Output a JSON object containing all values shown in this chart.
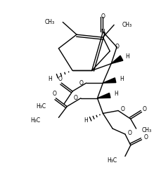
{
  "bg_color": "#ffffff",
  "line_color": "#000000",
  "lw": 1.0,
  "fig_width": 2.19,
  "fig_height": 2.52,
  "dpi": 100,
  "xlim": [
    0,
    219
  ],
  "ylim": [
    0,
    252
  ]
}
